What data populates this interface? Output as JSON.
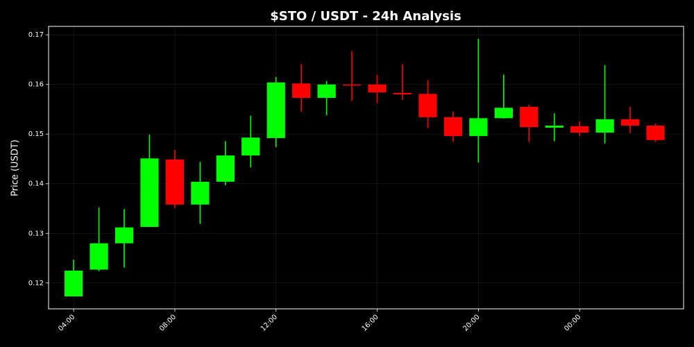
{
  "chart_data": {
    "type": "candlestick",
    "title": "$STO / USDT - 24h Analysis",
    "y_label": "Price (USDT)",
    "categories": [
      "04:00",
      null,
      null,
      null,
      "08:00",
      null,
      null,
      null,
      "12:00",
      null,
      null,
      null,
      "16:00",
      null,
      null,
      null,
      "20:00",
      null,
      null,
      null,
      "00:00",
      null,
      null,
      null
    ],
    "open": [
      0.1173,
      0.1227,
      0.128,
      0.1313,
      0.1449,
      0.1358,
      0.1404,
      0.1457,
      0.1492,
      0.1602,
      0.1573,
      0.16,
      0.16,
      0.1583,
      0.1581,
      0.1534,
      0.1496,
      0.1532,
      0.1555,
      0.1513,
      0.1516,
      0.1503,
      0.153,
      0.1517
    ],
    "high": [
      0.1247,
      0.1352,
      0.1349,
      0.1499,
      0.1468,
      0.1444,
      0.1486,
      0.1537,
      0.1615,
      0.1641,
      0.1607,
      0.1667,
      0.162,
      0.1641,
      0.1609,
      0.1545,
      0.1692,
      0.162,
      0.1559,
      0.1542,
      0.1526,
      0.1639,
      0.1555,
      0.1521
    ],
    "low": [
      0.1173,
      0.1224,
      0.1231,
      0.1313,
      0.1351,
      0.1319,
      0.1397,
      0.1433,
      0.1474,
      0.1545,
      0.1538,
      0.1567,
      0.1562,
      0.1569,
      0.1512,
      0.1484,
      0.1443,
      0.1531,
      0.1484,
      0.1486,
      0.1496,
      0.1481,
      0.1502,
      0.1484
    ],
    "close": [
      0.1225,
      0.128,
      0.1312,
      0.1451,
      0.1358,
      0.1404,
      0.1457,
      0.1493,
      0.1604,
      0.1573,
      0.16,
      0.1598,
      0.1584,
      0.158,
      0.1534,
      0.1496,
      0.1532,
      0.1553,
      0.1514,
      0.1517,
      0.1503,
      0.153,
      0.1517,
      0.1488
    ],
    "up_color": "#00ff00",
    "down_color": "#ff0000",
    "ylim": [
      0.1148,
      0.1717
    ],
    "yticks": [
      0.12,
      0.13,
      0.14,
      0.15,
      0.16,
      0.17
    ],
    "grid": true
  }
}
